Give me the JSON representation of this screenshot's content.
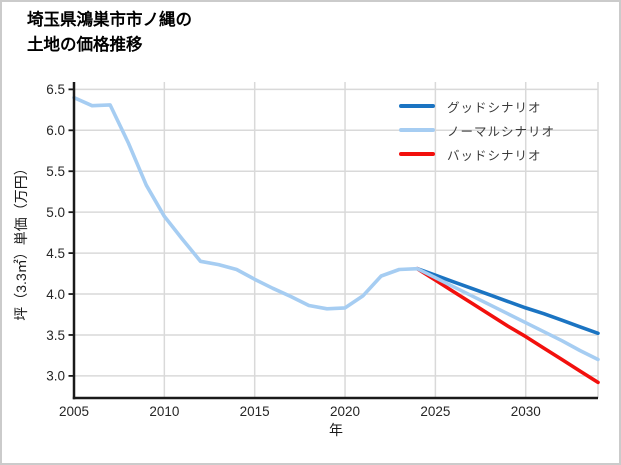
{
  "title": {
    "line1": "埼玉県鴻巣市市ノ縄の",
    "line2": "土地の価格推移"
  },
  "chart_data": {
    "type": "line",
    "title": "埼玉県鴻巣市市ノ縄の土地の価格推移",
    "xlabel": "年",
    "ylabel": "坪（3.3㎡）単価（万円）",
    "xlim": [
      2005,
      2034
    ],
    "ylim": [
      2.73,
      6.59
    ],
    "x_ticks": [
      2005,
      2010,
      2015,
      2020,
      2025,
      2030
    ],
    "y_ticks": [
      3.0,
      3.5,
      4.0,
      4.5,
      5.0,
      5.5,
      6.0,
      6.5
    ],
    "grid": true,
    "legend_position": "upper-right",
    "grid_color": "#d9d9d9",
    "axis_color": "#1a1a1a",
    "tick_label_color": "#262626",
    "series": [
      {
        "id": "good",
        "name": "グッドシナリオ",
        "color": "#1b74c2",
        "x": [
          2024,
          2025,
          2026,
          2027,
          2028,
          2029,
          2030,
          2031,
          2032,
          2033,
          2034
        ],
        "values": [
          4.31,
          4.23,
          4.15,
          4.07,
          3.99,
          3.91,
          3.83,
          3.76,
          3.68,
          3.6,
          3.52
        ]
      },
      {
        "id": "normal",
        "name": "ノーマルシナリオ",
        "color": "#a6cdf2",
        "x": [
          2005,
          2006,
          2007,
          2008,
          2009,
          2010,
          2011,
          2012,
          2013,
          2014,
          2015,
          2016,
          2017,
          2018,
          2019,
          2020,
          2021,
          2022,
          2023,
          2024,
          2025,
          2026,
          2027,
          2028,
          2029,
          2030,
          2031,
          2032,
          2033,
          2034
        ],
        "values": [
          6.4,
          6.3,
          6.31,
          5.85,
          5.33,
          4.95,
          4.67,
          4.4,
          4.36,
          4.3,
          4.18,
          4.07,
          3.97,
          3.86,
          3.82,
          3.83,
          3.98,
          4.22,
          4.3,
          4.31,
          4.2,
          4.09,
          3.98,
          3.87,
          3.76,
          3.65,
          3.54,
          3.43,
          3.31,
          3.2
        ]
      },
      {
        "id": "bad",
        "name": "バッドシナリオ",
        "color": "#f2100d",
        "x": [
          2024,
          2025,
          2026,
          2027,
          2028,
          2029,
          2030,
          2031,
          2032,
          2033,
          2034
        ],
        "values": [
          4.31,
          4.17,
          4.03,
          3.89,
          3.75,
          3.61,
          3.48,
          3.34,
          3.2,
          3.06,
          2.92
        ]
      }
    ]
  }
}
